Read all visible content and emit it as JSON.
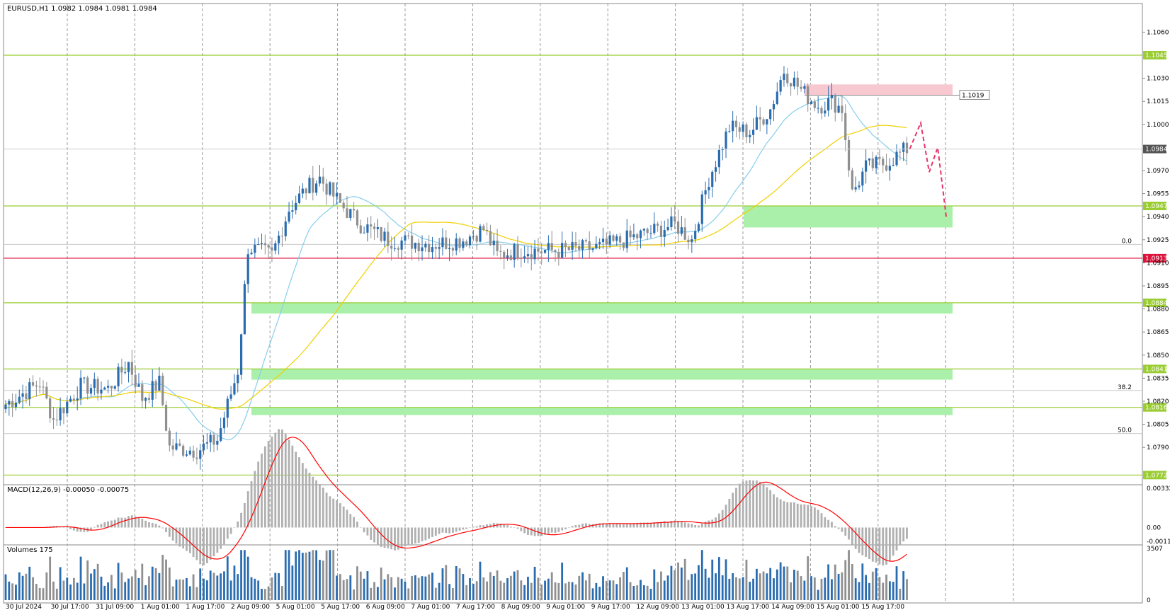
{
  "chart_data": {
    "type": "candlestick",
    "symbol_header": "EURUSD,H1  1.0982 1.0984 1.0981 1.0984",
    "price_ticks": [
      "1.1060",
      "1.1030",
      "1.1015",
      "1.1000",
      "1.0970",
      "1.0955",
      "1.0940",
      "1.0925",
      "1.0910",
      "1.0895",
      "1.0880",
      "1.0865",
      "1.0850",
      "1.0835",
      "1.0820",
      "1.0805",
      "1.0790"
    ],
    "y_range": [
      1.0768,
      1.1074
    ],
    "time_labels": [
      "30 Jul 2024",
      "30 Jul 17:00",
      "31 Jul 09:00",
      "1 Aug 01:00",
      "1 Aug 17:00",
      "2 Aug 09:00",
      "5 Aug 01:00",
      "5 Aug 17:00",
      "6 Aug 09:00",
      "7 Aug 01:00",
      "7 Aug 17:00",
      "8 Aug 09:00",
      "9 Aug 01:00",
      "9 Aug 17:00",
      "12 Aug 09:00",
      "13 Aug 01:00",
      "13 Aug 17:00",
      "14 Aug 09:00",
      "15 Aug 01:00",
      "15 Aug 17:00"
    ],
    "levels": [
      {
        "price": 1.1045,
        "label": "1.1045",
        "color": "#9acd32"
      },
      {
        "price": 1.0947,
        "label": "1.0947",
        "color": "#9acd32"
      },
      {
        "price": 1.0913,
        "label": "1.0913",
        "color": "#dc143c"
      },
      {
        "price": 1.0884,
        "label": "1.0884",
        "color": "#9acd32"
      },
      {
        "price": 1.0841,
        "label": "1.0841",
        "color": "#9acd32"
      },
      {
        "price": 1.0816,
        "label": "1.0816",
        "color": "#9acd32"
      },
      {
        "price": 1.0772,
        "label": "1.0772",
        "color": "#9acd32"
      }
    ],
    "current_price": "1.0984",
    "resistance_label": "1.1019",
    "zones": [
      {
        "kind": "resistance",
        "from": 1.1019,
        "to": 1.1026,
        "color": "#f8c8d0"
      },
      {
        "kind": "support",
        "from": 1.0933,
        "to": 1.0947,
        "color": "#aaf0aa"
      },
      {
        "kind": "support",
        "from": 1.0877,
        "to": 1.0884,
        "color": "#aaf0aa"
      },
      {
        "kind": "support",
        "from": 1.0834,
        "to": 1.0841,
        "color": "#aaf0aa"
      },
      {
        "kind": "support",
        "from": 1.0811,
        "to": 1.0816,
        "color": "#aaf0aa"
      }
    ],
    "fib_labels": [
      "0.0",
      "38.2",
      "50.0"
    ],
    "macd_label": "MACD(12,26,9) -0.00050 -0.00075",
    "macd_ticks": [
      "0.00332",
      "0.00",
      "-0.00117"
    ],
    "volume_label": "Volumes 175",
    "volume_ticks": [
      "3507",
      "0"
    ],
    "projection_path": [
      1.0984,
      1.1001,
      1.0969,
      1.0985,
      1.094
    ],
    "colors": {
      "bull": "#2a6cb0",
      "bear": "#8f8f8f",
      "ma_fast": "#87ceeb",
      "ma_slow": "#f0d000",
      "macd_signal": "#ff0000",
      "projection": "#e8336a"
    }
  }
}
